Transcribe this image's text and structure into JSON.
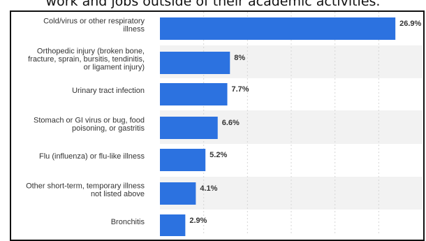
{
  "header": {
    "caption": "work and jobs outside of their academic activities."
  },
  "chart_data": {
    "type": "bar",
    "orientation": "horizontal",
    "title": "",
    "xlabel": "",
    "ylabel": "",
    "xlim": [
      0,
      30
    ],
    "grid": true,
    "value_suffix": "%",
    "bar_color": "#2c72e0",
    "band_color": "#f2f2f2",
    "categories": [
      [
        "Cold/virus or other respiratory",
        "illness"
      ],
      [
        "Orthopedic injury (broken bone,",
        "fracture, sprain, bursitis, tendinitis,",
        "or ligament injury)"
      ],
      [
        "Urinary tract infection"
      ],
      [
        "Stomach or GI virus or bug, food",
        "poisoning, or gastritis"
      ],
      [
        "Flu (influenza) or flu-like illness"
      ],
      [
        "Other short-term, temporary illness",
        "not listed above"
      ],
      [
        "Bronchitis"
      ]
    ],
    "values": [
      26.9,
      8,
      7.7,
      6.6,
      5.2,
      4.1,
      2.9
    ],
    "value_labels": [
      "26.9%",
      "8%",
      "7.7%",
      "6.6%",
      "5.2%",
      "4.1%",
      "2.9%"
    ]
  }
}
